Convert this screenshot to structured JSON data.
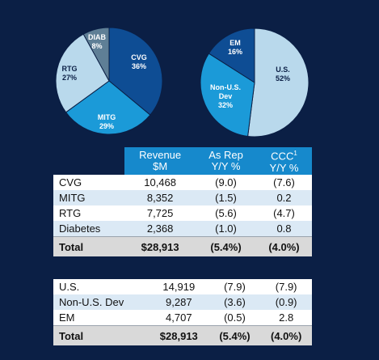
{
  "chart_data": [
    {
      "type": "pie",
      "slices": [
        {
          "label": "CVG",
          "value_label": "36%",
          "value": 36,
          "color": "#0e4d94"
        },
        {
          "label": "MITG",
          "value_label": "29%",
          "value": 29,
          "color": "#1b9ad8"
        },
        {
          "label": "RTG",
          "value_label": "27%",
          "value": 27,
          "color": "#b9d9ec"
        },
        {
          "label": "DIAB",
          "value_label": "8%",
          "value": 8,
          "color": "#5f7f96"
        }
      ]
    },
    {
      "type": "pie",
      "slices": [
        {
          "label": "U.S.",
          "value_label": "52%",
          "value": 52,
          "color": "#b9d9ec"
        },
        {
          "label": "Non-U.S. Dev",
          "value_label": "32%",
          "value": 32,
          "color": "#1b9ad8"
        },
        {
          "label": "EM",
          "value_label": "16%",
          "value": 16,
          "color": "#0e4d94"
        }
      ]
    },
    {
      "type": "table",
      "headers": [
        "Revenue $M",
        "As Rep Y/Y %",
        "CCC¹ Y/Y %"
      ],
      "rows": [
        [
          "CVG",
          "10,468",
          "(9.0)",
          "(7.6)"
        ],
        [
          "MITG",
          "8,352",
          "(1.5)",
          "0.2"
        ],
        [
          "RTG",
          "7,725",
          "(5.6)",
          "(4.7)"
        ],
        [
          "Diabetes",
          "2,368",
          "(1.0)",
          "0.8"
        ],
        [
          "Total",
          "$28,913",
          "(5.4%)",
          "(4.0%)"
        ]
      ]
    },
    {
      "type": "table",
      "rows": [
        [
          "U.S.",
          "14,919",
          "(7.9)",
          "(7.9)"
        ],
        [
          "Non-U.S. Dev",
          "9,287",
          "(3.6)",
          "(0.9)"
        ],
        [
          "EM",
          "4,707",
          "(0.5)",
          "2.8"
        ],
        [
          "Total",
          "$28,913",
          "(5.4%)",
          "(4.0%)"
        ]
      ]
    }
  ],
  "table_headers": {
    "revenue": "Revenue",
    "revenue_unit": "$M",
    "asrep": "As Rep",
    "asrep_unit": "Y/Y %",
    "ccc": "CCC",
    "ccc_sup": "1",
    "ccc_unit": "Y/Y %"
  }
}
